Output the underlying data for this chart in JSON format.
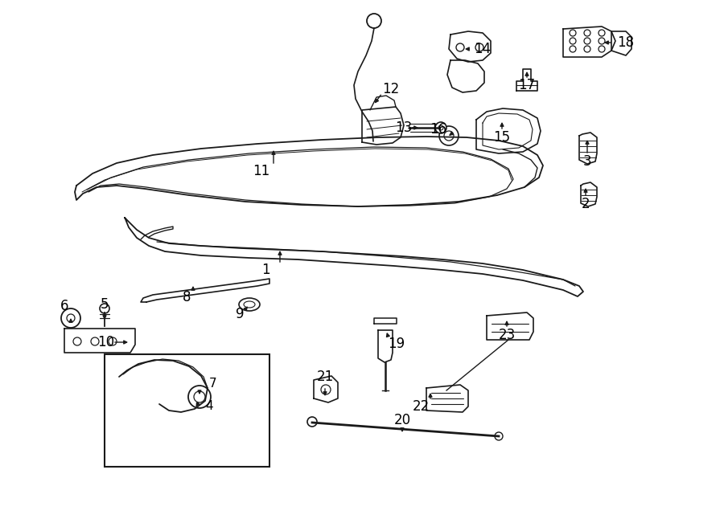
{
  "background_color": "#ffffff",
  "line_color": "#1a1a1a",
  "text_color": "#000000",
  "figsize": [
    9.0,
    6.61
  ],
  "dpi": 100
}
